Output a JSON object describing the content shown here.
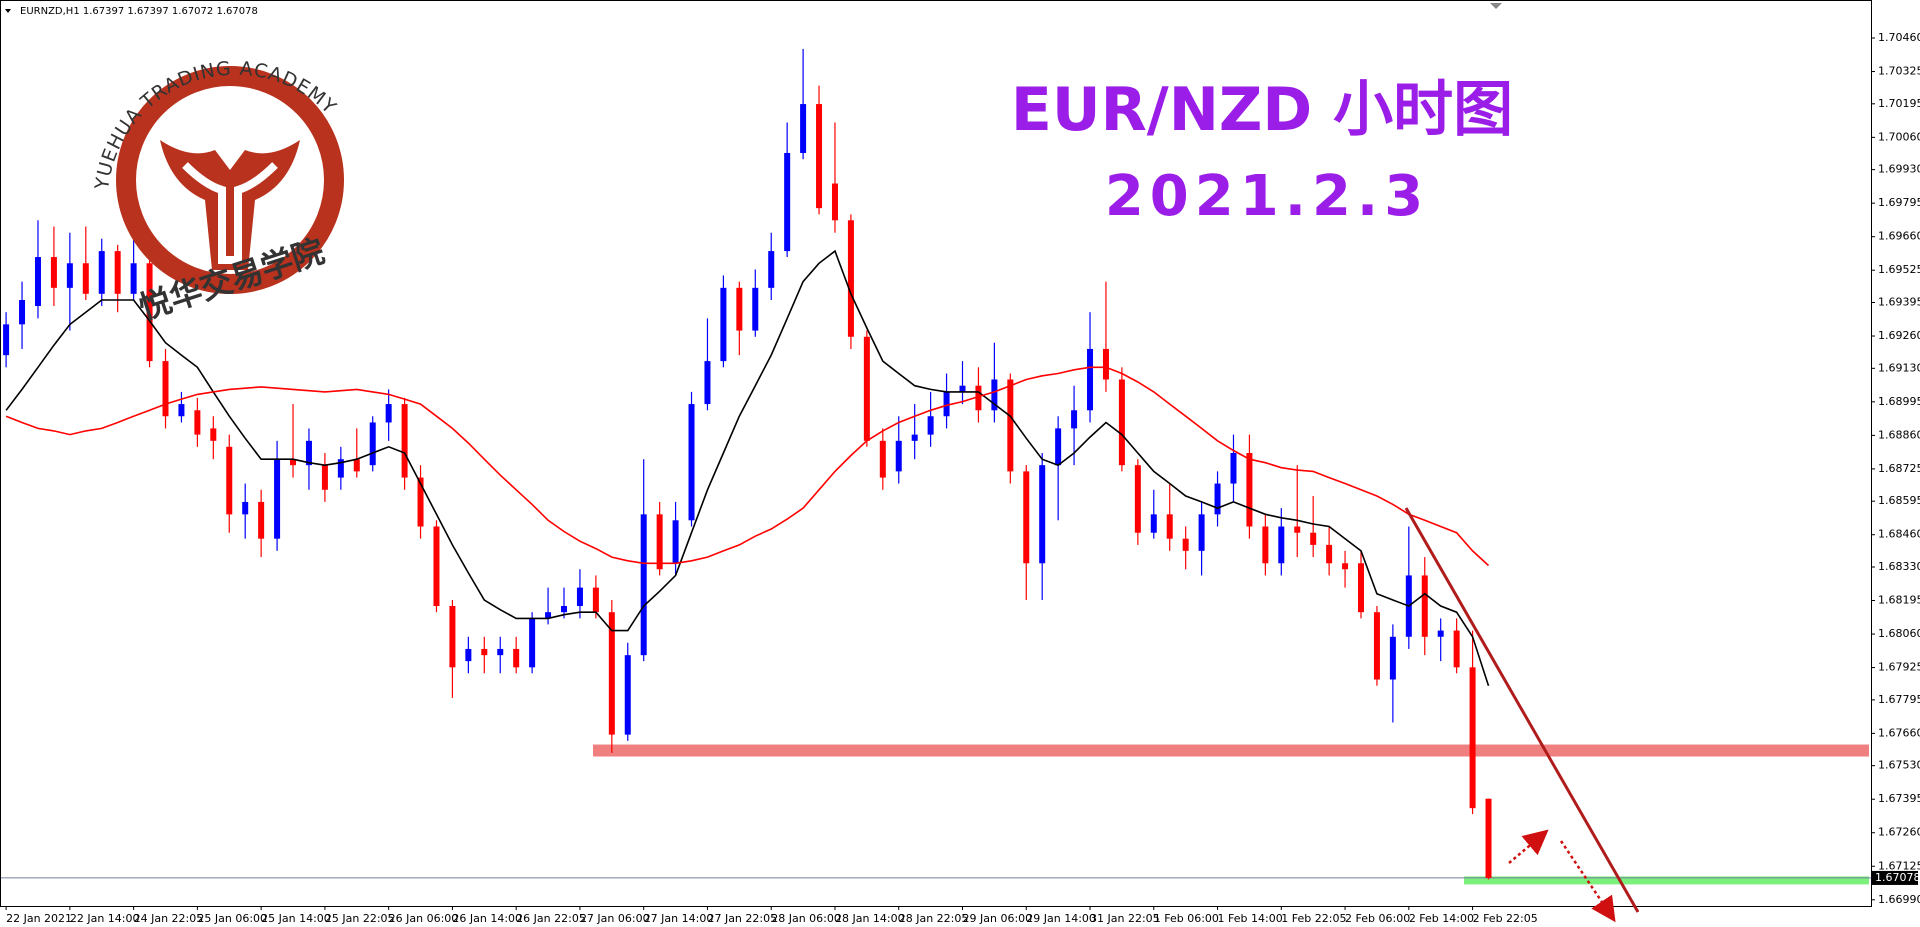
{
  "chart_data": {
    "type": "candlestick",
    "header": "EURNZD,H1  1.67397 1.67397 1.67072 1.67078",
    "title": "EUR/NZD 小时图",
    "subtitle": "2021.2.3",
    "logo_text": "YUEHUA TRADING ACADEMY",
    "logo_text_cn": "悦华交易学院",
    "up_color": "#0000ff",
    "down_color": "#ff0000",
    "categories": [
      "22 Jan 2021",
      null,
      null,
      null,
      "22 Jan 14:00",
      null,
      null,
      null,
      "24 Jan 22:05",
      null,
      null,
      null,
      "25 Jan 06:00",
      null,
      null,
      null,
      "25 Jan 14:00",
      null,
      null,
      null,
      "25 Jan 22:05",
      null,
      null,
      null,
      "26 Jan 06:00",
      null,
      null,
      null,
      "26 Jan 14:00",
      null,
      null,
      null,
      "26 Jan 22:05",
      null,
      null,
      null,
      "27 Jan 06:00",
      null,
      null,
      null,
      "27 Jan 14:00",
      null,
      null,
      null,
      "27 Jan 22:05",
      null,
      null,
      null,
      "28 Jan 06:00",
      null,
      null,
      null,
      "28 Jan 14:00",
      null,
      null,
      null,
      "28 Jan 22:05",
      null,
      null,
      null,
      "29 Jan 06:00",
      null,
      null,
      null,
      "29 Jan 14:00",
      null,
      null,
      null,
      "31 Jan 22:05",
      null,
      null,
      null,
      "1 Feb 06:00",
      null,
      null,
      null,
      "1 Feb 14:00",
      null,
      null,
      null,
      "1 Feb 22:05",
      null,
      null,
      null,
      "2 Feb 06:00",
      null,
      null,
      null,
      "2 Feb 14:00",
      null,
      null,
      null,
      "2 Feb 22:05",
      null
    ],
    "open": [
      1.69183,
      1.69307,
      1.69381,
      1.69578,
      1.69454,
      1.69553,
      1.6943,
      1.69602,
      1.6943,
      1.69553,
      1.69159,
      1.68937,
      1.68961,
      1.68888,
      1.68814,
      1.68542,
      1.68592,
      1.68444,
      1.68764,
      1.6874,
      1.6874,
      1.6869,
      1.68764,
      1.6874,
      1.68912,
      1.68986,
      1.6869,
      1.68493,
      1.68173,
      1.67951,
      1.68,
      1.67975,
      1.68,
      1.67926,
      1.68123,
      1.68148,
      1.68173,
      1.68247,
      1.68148,
      1.67655,
      1.67975,
      1.68542,
      1.68345,
      1.68518,
      1.68986,
      1.69159,
      1.69454,
      1.69282,
      1.69454,
      1.69602,
      1.69997,
      1.70194,
      1.69874,
      1.69726,
      1.69257,
      1.68838,
      1.68715,
      1.68838,
      1.68863,
      1.68937,
      1.69035,
      1.6906,
      1.68961,
      1.69085,
      1.68715,
      1.68345,
      1.6874,
      1.68888,
      1.68961,
      1.69208,
      1.69085,
      1.6874,
      1.68468,
      1.68542,
      1.68444,
      1.68395,
      1.68542,
      1.68666,
      1.68789,
      1.68493,
      1.68345,
      1.68493,
      1.68468,
      1.68419,
      1.68345,
      1.68345,
      1.68148,
      1.67877,
      1.68049,
      1.68296,
      1.68049,
      1.68074,
      1.67926,
      1.67397
    ],
    "high": [
      1.69356,
      1.69479,
      1.69726,
      1.69701,
      1.69676,
      1.69701,
      1.69652,
      1.69627,
      1.69652,
      1.69578,
      1.69208,
      1.69035,
      1.69011,
      1.68937,
      1.68863,
      1.68666,
      1.68641,
      1.68838,
      1.68986,
      1.68888,
      1.68789,
      1.68814,
      1.68888,
      1.68937,
      1.69045,
      1.69011,
      1.6874,
      1.68518,
      1.68197,
      1.68049,
      1.68049,
      1.68049,
      1.68049,
      1.68148,
      1.68247,
      1.68247,
      1.68321,
      1.68296,
      1.68197,
      1.68025,
      1.68764,
      1.68592,
      1.68592,
      1.69035,
      1.69331,
      1.69504,
      1.69479,
      1.69528,
      1.69676,
      1.7012,
      1.70416,
      1.70268,
      1.7012,
      1.6975,
      1.69282,
      1.68888,
      1.68937,
      1.68986,
      1.69035,
      1.69109,
      1.69159,
      1.69134,
      1.69233,
      1.69109,
      1.6874,
      1.68789,
      1.68937,
      1.6906,
      1.69356,
      1.69479,
      1.69134,
      1.68764,
      1.68641,
      1.68666,
      1.68493,
      1.68592,
      1.68715,
      1.68863,
      1.68863,
      1.68542,
      1.68567,
      1.6874,
      1.68616,
      1.68493,
      1.68395,
      1.68395,
      1.68173,
      1.68099,
      1.68493,
      1.6837,
      1.68123,
      1.68123,
      1.68074,
      1.67397
    ],
    "low": [
      1.69134,
      1.69208,
      1.69331,
      1.69381,
      1.69282,
      1.69405,
      1.69381,
      1.69356,
      1.69405,
      1.69134,
      1.68888,
      1.68912,
      1.68814,
      1.68764,
      1.68468,
      1.68444,
      1.6837,
      1.68395,
      1.6869,
      1.68641,
      1.68592,
      1.68641,
      1.6869,
      1.68715,
      1.68838,
      1.68641,
      1.68444,
      1.68148,
      1.67803,
      1.67902,
      1.67902,
      1.67902,
      1.67902,
      1.67902,
      1.68099,
      1.68123,
      1.68123,
      1.68123,
      1.67581,
      1.6763,
      1.67951,
      1.68296,
      1.68296,
      1.68493,
      1.68961,
      1.69134,
      1.69183,
      1.69257,
      1.69405,
      1.69578,
      1.69972,
      1.6975,
      1.69676,
      1.69208,
      1.68814,
      1.68641,
      1.68666,
      1.68764,
      1.68814,
      1.68888,
      1.68986,
      1.68912,
      1.68912,
      1.68666,
      1.68197,
      1.68197,
      1.68518,
      1.6874,
      1.68912,
      1.69035,
      1.68715,
      1.68419,
      1.68444,
      1.68395,
      1.68321,
      1.68296,
      1.68493,
      1.68592,
      1.68444,
      1.68296,
      1.68296,
      1.6837,
      1.6837,
      1.68296,
      1.68247,
      1.68123,
      1.67852,
      1.67704,
      1.68,
      1.67975,
      1.67951,
      1.67902,
      1.67335,
      1.67072
    ],
    "close": [
      1.69307,
      1.69405,
      1.69578,
      1.69454,
      1.69553,
      1.6943,
      1.69602,
      1.6943,
      1.69553,
      1.69159,
      1.68937,
      1.68986,
      1.68863,
      1.68838,
      1.68542,
      1.68592,
      1.68444,
      1.68764,
      1.6874,
      1.68838,
      1.68641,
      1.68764,
      1.68715,
      1.68912,
      1.68986,
      1.6869,
      1.68493,
      1.68173,
      1.67926,
      1.68,
      1.67975,
      1.68,
      1.67926,
      1.68123,
      1.68148,
      1.68173,
      1.68247,
      1.68148,
      1.67655,
      1.67975,
      1.68542,
      1.68321,
      1.68518,
      1.68986,
      1.69159,
      1.69454,
      1.69282,
      1.69454,
      1.69602,
      1.69997,
      1.70194,
      1.69775,
      1.69726,
      1.69257,
      1.68838,
      1.6869,
      1.68838,
      1.68863,
      1.68937,
      1.69035,
      1.6906,
      1.68961,
      1.69085,
      1.68715,
      1.68345,
      1.6874,
      1.68888,
      1.68961,
      1.69208,
      1.69085,
      1.6874,
      1.68468,
      1.68542,
      1.68444,
      1.68395,
      1.68542,
      1.68666,
      1.68789,
      1.68493,
      1.68345,
      1.68493,
      1.68468,
      1.68419,
      1.68345,
      1.68321,
      1.68148,
      1.67877,
      1.68049,
      1.68296,
      1.68049,
      1.68074,
      1.67926,
      1.67359,
      1.67078
    ],
    "moving_averages": [
      {
        "color": "#000000",
        "values": [
          1.68961,
          1.69045,
          1.69134,
          1.69223,
          1.69307,
          1.69356,
          1.69405,
          1.69405,
          1.69405,
          1.69321,
          1.69233,
          1.69183,
          1.69134,
          1.69035,
          1.68937,
          1.68848,
          1.68764,
          1.68764,
          1.68764,
          1.6875,
          1.6874,
          1.6875,
          1.68764,
          1.68789,
          1.68814,
          1.68789,
          1.68666,
          1.68542,
          1.68419,
          1.68306,
          1.68197,
          1.68158,
          1.68123,
          1.68123,
          1.68123,
          1.68138,
          1.68148,
          1.68148,
          1.68074,
          1.68074,
          1.68173,
          1.68232,
          1.68296,
          1.68468,
          1.68641,
          1.68789,
          1.68937,
          1.6906,
          1.69183,
          1.69331,
          1.69479,
          1.69553,
          1.69602,
          1.6943,
          1.69292,
          1.69159,
          1.69109,
          1.6906,
          1.69045,
          1.69035,
          1.69035,
          1.69035,
          1.68986,
          1.68937,
          1.68848,
          1.68764,
          1.6874,
          1.68789,
          1.68853,
          1.68912,
          1.68863,
          1.68789,
          1.68715,
          1.68666,
          1.68616,
          1.68592,
          1.68567,
          1.68592,
          1.68567,
          1.68542,
          1.68528,
          1.68518,
          1.68503,
          1.68493,
          1.68444,
          1.68395,
          1.68222,
          1.68197,
          1.68173,
          1.68222,
          1.68173,
          1.68148,
          1.68049,
          1.67852
        ]
      },
      {
        "color": "#ff0000",
        "values": [
          1.68937,
          1.68912,
          1.68888,
          1.68878,
          1.68863,
          1.68878,
          1.68888,
          1.68912,
          1.68937,
          1.68961,
          1.68986,
          1.69006,
          1.69025,
          1.69035,
          1.69045,
          1.6905,
          1.69055,
          1.6905,
          1.69045,
          1.6904,
          1.69035,
          1.6904,
          1.69045,
          1.69035,
          1.69025,
          1.69006,
          1.68986,
          1.68937,
          1.68888,
          1.68829,
          1.68764,
          1.687,
          1.68641,
          1.68582,
          1.68518,
          1.68473,
          1.68434,
          1.68404,
          1.6837,
          1.68355,
          1.68345,
          1.68345,
          1.68345,
          1.68355,
          1.6837,
          1.68395,
          1.68419,
          1.68454,
          1.68483,
          1.68523,
          1.68567,
          1.68641,
          1.68715,
          1.68779,
          1.68838,
          1.68878,
          1.68912,
          1.68937,
          1.68961,
          1.68981,
          1.68996,
          1.69016,
          1.69035,
          1.6906,
          1.69085,
          1.691,
          1.69109,
          1.69124,
          1.69134,
          1.69134,
          1.69109,
          1.69075,
          1.69035,
          1.68986,
          1.68937,
          1.68888,
          1.68838,
          1.68799,
          1.68764,
          1.6875,
          1.6873,
          1.6872,
          1.68715,
          1.6869,
          1.68666,
          1.68641,
          1.68616,
          1.68582,
          1.68542,
          1.68518,
          1.68493,
          1.68468,
          1.68395,
          1.68336
        ]
      }
    ],
    "zones": [
      {
        "color": "#f08080",
        "value": 1.67591
      },
      {
        "color": "#7cf07c",
        "value": 1.67068
      }
    ],
    "last_price": 1.67078,
    "ylim": [
      1.66965,
      1.70613
    ],
    "yticks": [
      {
        "value": 1.7046,
        "label": "1.70460"
      },
      1.70325,
      1.70195,
      {
        "value": 1.7006,
        "label": "1.70060"
      },
      {
        "value": 1.6993,
        "label": "1.69930"
      },
      1.69795,
      {
        "value": 1.6966,
        "label": "1.69660"
      },
      1.69525,
      1.69395,
      {
        "value": 1.6926,
        "label": "1.69260"
      },
      {
        "value": 1.6913,
        "label": "1.69130"
      },
      1.68995,
      {
        "value": 1.6886,
        "label": "1.68860"
      },
      1.68725,
      1.68595,
      {
        "value": 1.6846,
        "label": "1.68460"
      },
      {
        "value": 1.6833,
        "label": "1.68330"
      },
      1.68195,
      {
        "value": 1.6806,
        "label": "1.68060"
      },
      1.67925,
      1.67795,
      {
        "value": 1.6766,
        "label": "1.67660"
      },
      {
        "value": 1.6753,
        "label": "1.67530"
      },
      1.67395,
      {
        "value": 1.6726,
        "label": "1.67260"
      },
      1.67125,
      {
        "value": 1.6699,
        "label": "1.66990"
      }
    ]
  }
}
